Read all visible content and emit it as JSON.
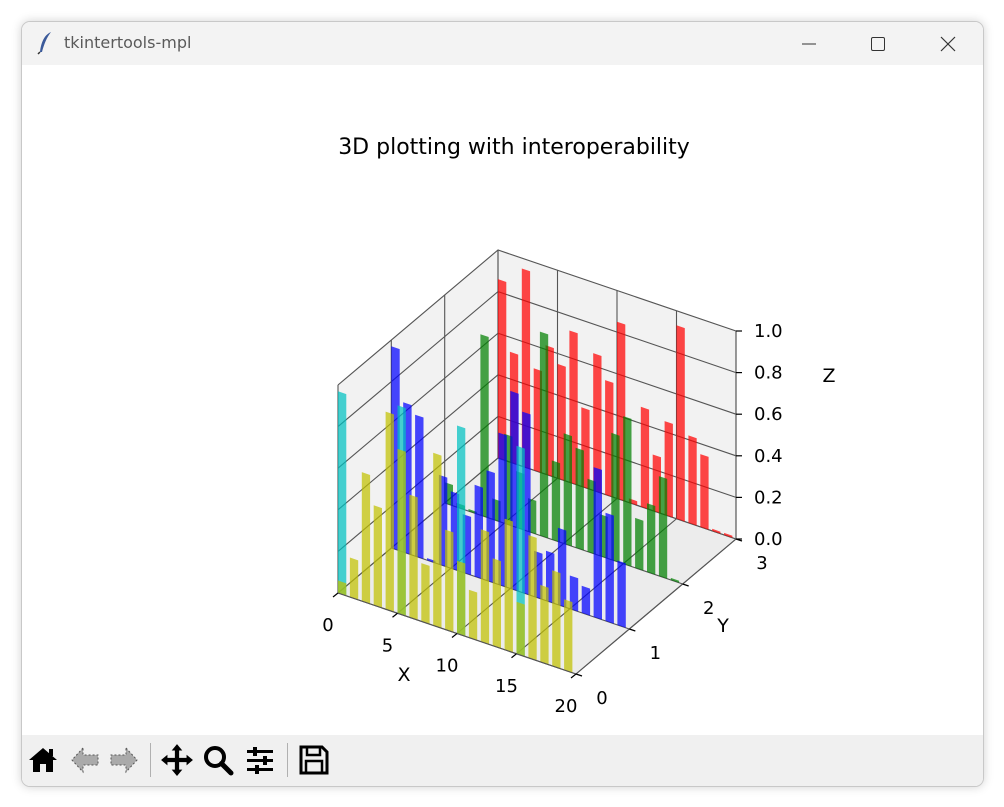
{
  "window": {
    "title": "tkintertools-mpl"
  },
  "icons": {
    "app": "feather-icon",
    "minimize": "minimize-icon",
    "maximize": "maximize-icon",
    "close": "close-icon"
  },
  "toolbar": {
    "buttons": [
      {
        "name": "home-button",
        "icon": "home-icon"
      },
      {
        "name": "back-button",
        "icon": "back-arrow-icon"
      },
      {
        "name": "forward-button",
        "icon": "forward-arrow-icon"
      },
      {
        "name": "pan-button",
        "icon": "move-icon"
      },
      {
        "name": "zoom-button",
        "icon": "magnifier-icon"
      },
      {
        "name": "configure-subplots-button",
        "icon": "sliders-icon"
      },
      {
        "name": "save-button",
        "icon": "floppy-disk-icon"
      }
    ]
  },
  "chart_data": {
    "type": "bar3d",
    "title": "3D plotting with interoperability",
    "xlabel": "X",
    "ylabel": "Y",
    "zlabel": "Z",
    "xlim": [
      0,
      20
    ],
    "ylim": [
      0,
      3
    ],
    "zlim": [
      0,
      1
    ],
    "x_ticks": [
      "0",
      "5",
      "10",
      "15",
      "20"
    ],
    "y_ticks": [
      "0",
      "1",
      "2",
      "3"
    ],
    "z_ticks": [
      "0.0",
      "0.2",
      "0.4",
      "0.6",
      "0.8",
      "1.0"
    ],
    "series": [
      {
        "y": 3,
        "color": "#ff0000",
        "values": [
          0.86,
          0.53,
          0.95,
          0.49,
          0.62,
          0.55,
          0.73,
          0.38,
          0.66,
          0.55,
          0.85,
          0.02,
          0.48,
          0.27,
          0.45,
          0.93,
          0.42,
          0.35,
          0.01,
          0.01
        ]
      },
      {
        "y": 2,
        "color": "#008000",
        "values": [
          0.1,
          0.02,
          0.01,
          0.87,
          0.1,
          0.43,
          0.27,
          0.16,
          0.98,
          0.38,
          0.53,
          0.48,
          0.35,
          0.2,
          0.61,
          0.71,
          0.24,
          0.33,
          0.48,
          0.01
        ]
      },
      {
        "y": 1,
        "color": "#0000ff",
        "values": [
          0.97,
          0.72,
          0.68,
          0.01,
          0.43,
          0.37,
          0.28,
          0.44,
          0.53,
          0.73,
          0.95,
          0.87,
          0.22,
          0.24,
          0.37,
          0.16,
          0.13,
          0.72,
          0.52,
          0.31
        ]
      },
      {
        "y": 0,
        "color": "#00c0c0",
        "sparse": true,
        "values": [
          0.97,
          0,
          0,
          0,
          0,
          1.0,
          0,
          0,
          0,
          0,
          1.0,
          0,
          0,
          0,
          0,
          1.0,
          0,
          0,
          0,
          0
        ]
      },
      {
        "y": 0,
        "color": "#c0c000",
        "values": [
          0.06,
          0.19,
          0.62,
          0.48,
          0.95,
          0.79,
          0.59,
          0.28,
          0.83,
          0.48,
          0.35,
          0.23,
          0.54,
          0.42,
          0.63,
          0.25,
          0.59,
          0.37,
          0.46,
          0.34
        ]
      }
    ]
  }
}
